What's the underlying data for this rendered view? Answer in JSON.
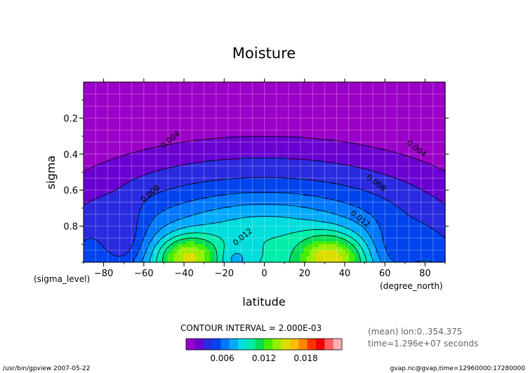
{
  "chart_data": {
    "type": "contour",
    "title": "Moisture",
    "xlabel": "latitude",
    "ylabel": "sigma",
    "x_unit": "(degree_north)",
    "y_unit": "(sigma_level)",
    "xlim": [
      -90,
      90
    ],
    "ylim": [
      1.0,
      0.0
    ],
    "x_ticks": [
      -80,
      -60,
      -40,
      -20,
      0,
      20,
      40,
      60,
      80
    ],
    "y_ticks": [
      0.2,
      0.4,
      0.6,
      0.8
    ],
    "grid": true,
    "contour_interval": "CONTOUR INTERVAL = 2.000E-03",
    "line_labels": [
      {
        "text": "0.004",
        "lat": -46,
        "sigma": 0.33
      },
      {
        "text": "0.004",
        "lat": 75,
        "sigma": 0.38
      },
      {
        "text": "0.008",
        "lat": -56,
        "sigma": 0.63
      },
      {
        "text": "0.008",
        "lat": 55,
        "sigma": 0.57
      },
      {
        "text": "0.012",
        "lat": -10,
        "sigma": 0.87
      },
      {
        "text": "0.012",
        "lat": 47,
        "sigma": 0.77
      }
    ],
    "colorbar": {
      "levels": [
        0,
        0.002,
        0.004,
        0.006,
        0.008,
        0.01,
        0.012,
        0.014,
        0.016,
        0.018,
        0.02,
        0.022
      ],
      "tick_labels": [
        "0.006",
        "0.012",
        "0.018"
      ],
      "colors": [
        "#9b00c8",
        "#6a00d2",
        "#2a2ae0",
        "#0044ee",
        "#0077ff",
        "#00aaff",
        "#00dddd",
        "#00eeaa",
        "#00dd55",
        "#44ee00",
        "#99ee00",
        "#dddd00",
        "#ffbb00",
        "#ff8800",
        "#ff3300",
        "#ee0000",
        "#ff6060",
        "#ffb0b0"
      ]
    },
    "info": {
      "mean": "(mean) lon:0..354.375",
      "time": "time=1.296e+07 seconds"
    }
  },
  "footer": {
    "left": "/usr/bin/gpview  2007-05-22",
    "right": "gvap.nc@gvap,time=12960000:17280000"
  }
}
